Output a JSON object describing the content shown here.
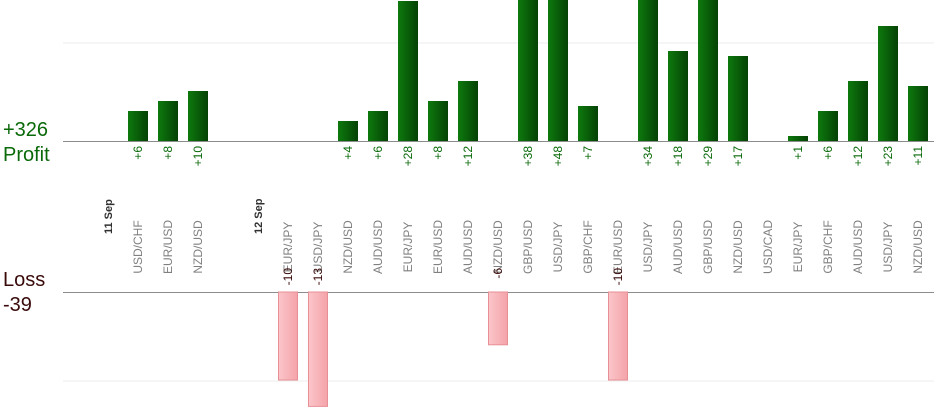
{
  "summary": {
    "profit_label": "Profit",
    "profit_value": "+326",
    "loss_label": "Loss",
    "loss_value": "-39"
  },
  "colors": {
    "profit_bar": "#0a6a0a",
    "profit_text": "#0a6a0a",
    "loss_bar": "#f4a8ad",
    "loss_text": "#3a0a0a",
    "pair_text": "#808080",
    "date_text": "#303030"
  },
  "chart_data": {
    "type": "bar",
    "title": "",
    "xlabel": "",
    "ylabel": "",
    "grid": true,
    "columns": [
      {
        "label": "11 Sep",
        "kind": "date"
      },
      {
        "label": "USD/CHF",
        "profit": 6
      },
      {
        "label": "EUR/USD",
        "profit": 8
      },
      {
        "label": "NZD/USD",
        "profit": 10
      },
      {
        "label": "",
        "kind": "gap"
      },
      {
        "label": "12 Sep",
        "kind": "date"
      },
      {
        "label": "EUR/JPY",
        "loss": -10
      },
      {
        "label": "USD/JPY",
        "loss": -13
      },
      {
        "label": "NZD/USD",
        "profit": 4
      },
      {
        "label": "AUD/USD",
        "profit": 6
      },
      {
        "label": "EUR/JPY",
        "profit": 28
      },
      {
        "label": "EUR/USD",
        "profit": 8
      },
      {
        "label": "AUD/USD",
        "profit": 12
      },
      {
        "label": "NZD/USD",
        "loss": -6
      },
      {
        "label": "GBP/USD",
        "profit": 38
      },
      {
        "label": "USD/JPY",
        "profit": 48
      },
      {
        "label": "GBP/CHF",
        "profit": 7
      },
      {
        "label": "EUR/USD",
        "loss": -10
      },
      {
        "label": "USD/JPY",
        "profit": 34
      },
      {
        "label": "AUD/USD",
        "profit": 18
      },
      {
        "label": "GBP/USD",
        "profit": 29
      },
      {
        "label": "NZD/USD",
        "profit": 17
      },
      {
        "label": "USD/CAD"
      },
      {
        "label": "EUR/JPY",
        "profit": 1
      },
      {
        "label": "GBP/CHF",
        "profit": 6
      },
      {
        "label": "AUD/USD",
        "profit": 12
      },
      {
        "label": "USD/JPY",
        "profit": 23
      },
      {
        "label": "NZD/USD",
        "profit": 11
      }
    ]
  }
}
